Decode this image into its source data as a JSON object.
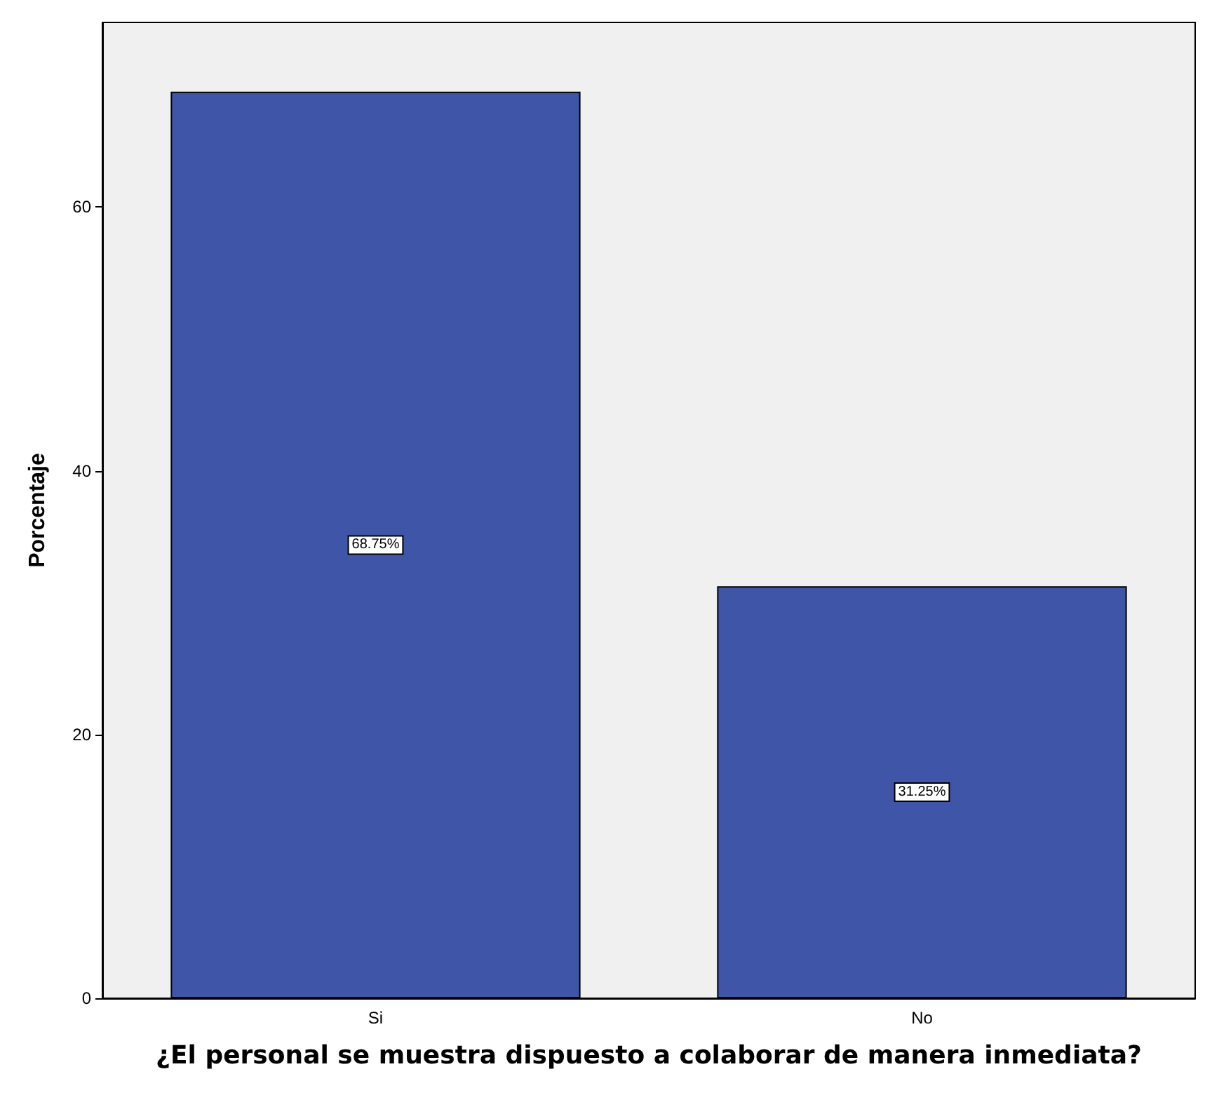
{
  "chart_data": {
    "type": "bar",
    "xlabel": "¿El personal se muestra dispuesto a colaborar de manera inmediata?",
    "ylabel": "Porcentaje",
    "categories": [
      "Si",
      "No"
    ],
    "values": [
      68.75,
      31.25
    ],
    "color": "#3f56a8",
    "value_labels": [
      "68.75%",
      "31.25%"
    ],
    "ylim": [
      0,
      74
    ],
    "yticks": [
      0,
      20,
      40,
      60
    ],
    "grid": false
  }
}
